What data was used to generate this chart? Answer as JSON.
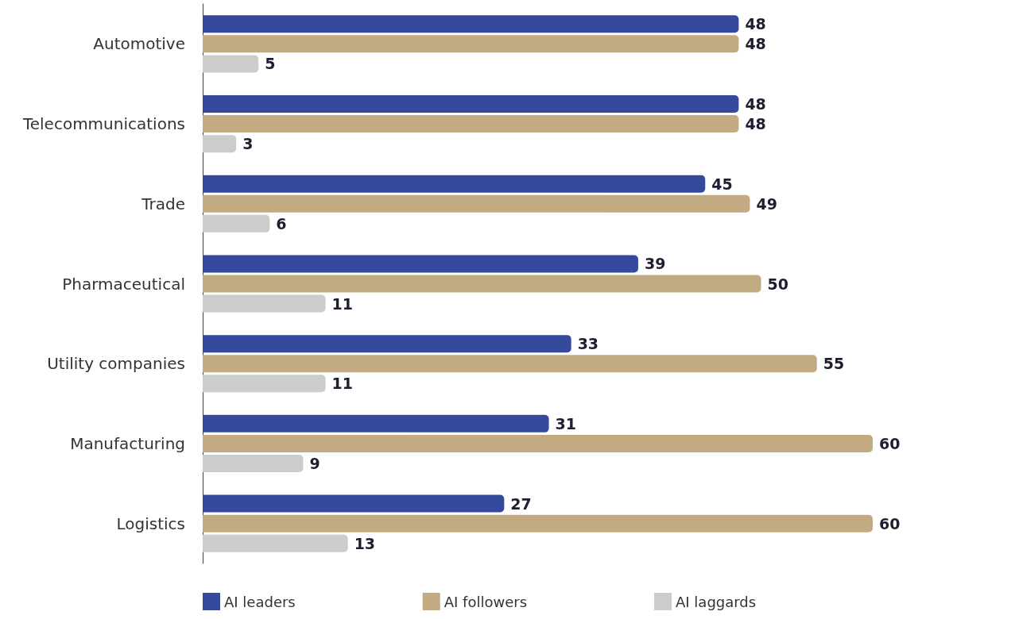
{
  "chart_data": {
    "type": "bar",
    "orientation": "horizontal",
    "categories": [
      "Automotive",
      "Telecommunications",
      "Trade",
      "Pharmaceutical",
      "Utility companies",
      "Manufacturing",
      "Logistics"
    ],
    "series": [
      {
        "name": "AI leaders",
        "color": "#354a9c",
        "values": [
          48,
          48,
          45,
          39,
          33,
          31,
          27
        ]
      },
      {
        "name": "AI followers",
        "color": "#c2ab83",
        "values": [
          48,
          48,
          49,
          50,
          55,
          60,
          60
        ]
      },
      {
        "name": "AI laggards",
        "color": "#cccccc",
        "values": [
          5,
          3,
          6,
          11,
          11,
          9,
          13
        ]
      }
    ],
    "data_labels": true,
    "legend": "bottom",
    "grid": false
  }
}
